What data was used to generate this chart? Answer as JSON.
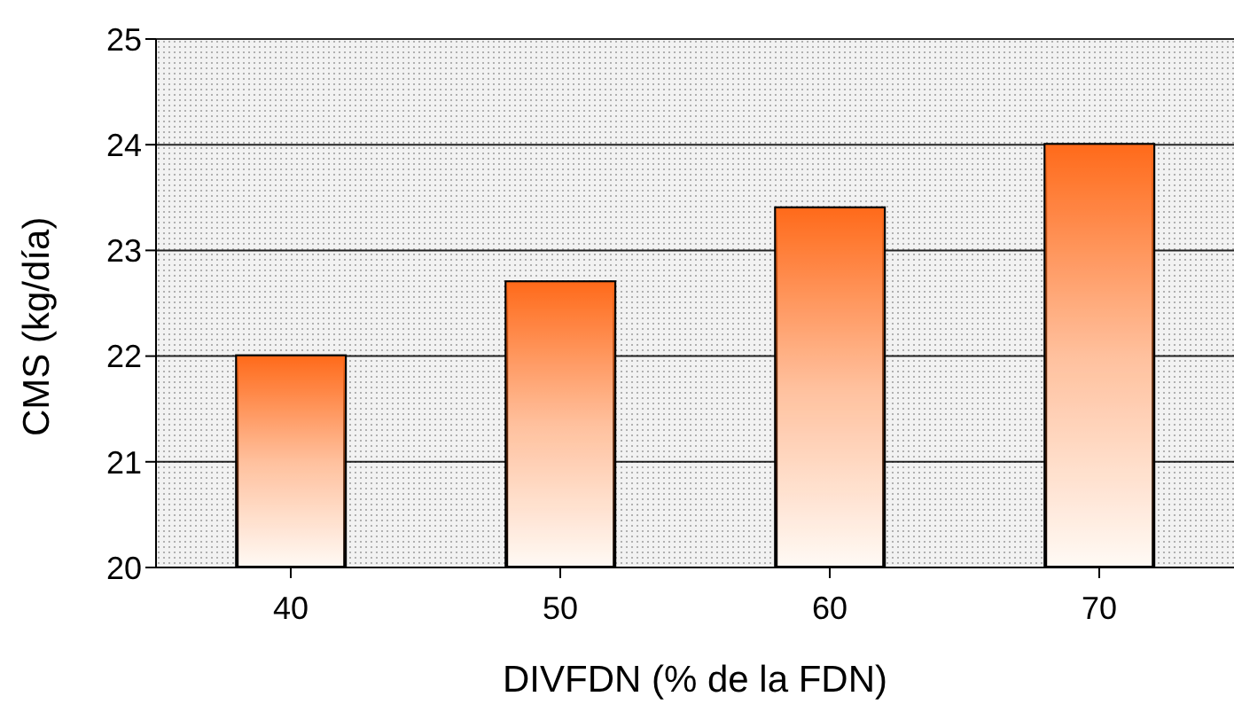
{
  "chart_data": {
    "type": "bar",
    "xlabel": "DIVFDN (% de la FDN)",
    "ylabel": "CMS (kg/día)",
    "categories": [
      "40",
      "50",
      "60",
      "70"
    ],
    "values": [
      22.0,
      22.7,
      23.4,
      24.0
    ],
    "color": "#ff6a1a",
    "ylim": [
      20,
      25
    ],
    "yticks": [
      20,
      21,
      22,
      23,
      24,
      25
    ],
    "grid": "y"
  }
}
